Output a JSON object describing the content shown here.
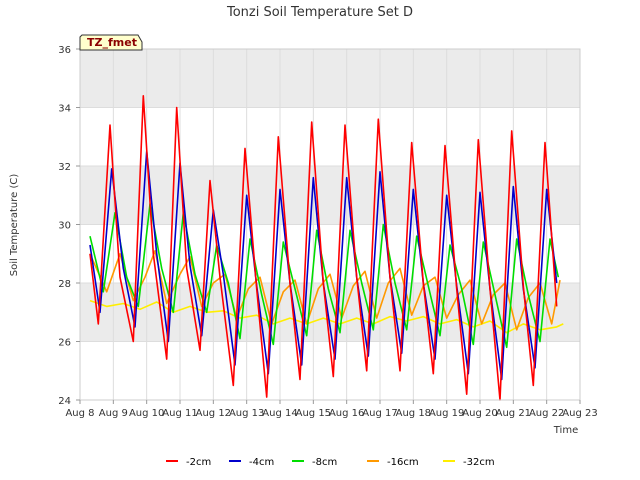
{
  "chart_data": {
    "type": "line",
    "title": "Tonzi Soil Temperature Set D",
    "xlabel": "Time",
    "ylabel": "Soil Temperature (C)",
    "tag": "TZ_fmet",
    "xlim": [
      8,
      23
    ],
    "ylim": [
      24,
      36
    ],
    "x_ticks": [
      {
        "value": 8,
        "label": "Aug 8"
      },
      {
        "value": 9,
        "label": "Aug 9"
      },
      {
        "value": 10,
        "label": "Aug 10"
      },
      {
        "value": 11,
        "label": "Aug 11"
      },
      {
        "value": 12,
        "label": "Aug 12"
      },
      {
        "value": 13,
        "label": "Aug 13"
      },
      {
        "value": 14,
        "label": "Aug 14"
      },
      {
        "value": 15,
        "label": "Aug 15"
      },
      {
        "value": 16,
        "label": "Aug 16"
      },
      {
        "value": 17,
        "label": "Aug 17"
      },
      {
        "value": 18,
        "label": "Aug 18"
      },
      {
        "value": 19,
        "label": "Aug 19"
      },
      {
        "value": 20,
        "label": "Aug 20"
      },
      {
        "value": 21,
        "label": "Aug 21"
      },
      {
        "value": 22,
        "label": "Aug 22"
      },
      {
        "value": 23,
        "label": "Aug 23"
      }
    ],
    "y_ticks": [
      {
        "value": 24,
        "label": "24"
      },
      {
        "value": 26,
        "label": "26"
      },
      {
        "value": 28,
        "label": "28"
      },
      {
        "value": 30,
        "label": "30"
      },
      {
        "value": 32,
        "label": "32"
      },
      {
        "value": 34,
        "label": "34"
      },
      {
        "value": 36,
        "label": "36"
      }
    ],
    "grid": true,
    "legend_position": "bottom",
    "series": [
      {
        "name": "-2cm",
        "color": "#ff0000",
        "x": [
          8.3,
          8.55,
          8.9,
          9.2,
          9.6,
          9.9,
          10.2,
          10.6,
          10.9,
          11.2,
          11.6,
          11.9,
          12.2,
          12.6,
          12.95,
          13.3,
          13.6,
          13.95,
          14.3,
          14.6,
          14.95,
          15.3,
          15.6,
          15.95,
          16.3,
          16.6,
          16.95,
          17.3,
          17.6,
          17.95,
          18.3,
          18.6,
          18.95,
          19.3,
          19.6,
          19.95,
          20.3,
          20.6,
          20.95,
          21.3,
          21.6,
          21.95,
          22.3
        ],
        "y": [
          29.0,
          26.6,
          33.4,
          28.2,
          26.0,
          34.4,
          29.0,
          25.4,
          34.0,
          28.5,
          25.7,
          31.5,
          28.2,
          24.5,
          32.6,
          27.8,
          24.1,
          33.0,
          28.0,
          24.7,
          33.5,
          28.0,
          24.8,
          33.4,
          28.2,
          25.0,
          33.6,
          28.2,
          25.0,
          32.8,
          28.0,
          24.9,
          32.7,
          27.8,
          24.2,
          32.9,
          27.8,
          24.0,
          33.2,
          27.9,
          24.5,
          32.8,
          27.2
        ]
      },
      {
        "name": "-4cm",
        "color": "#0000cc",
        "x": [
          8.3,
          8.6,
          8.95,
          9.3,
          9.65,
          10.0,
          10.3,
          10.65,
          11.0,
          11.3,
          11.65,
          12.0,
          12.3,
          12.65,
          13.0,
          13.3,
          13.65,
          14.0,
          14.3,
          14.65,
          15.0,
          15.3,
          15.65,
          16.0,
          16.3,
          16.65,
          17.0,
          17.3,
          17.65,
          18.0,
          18.3,
          18.65,
          19.0,
          19.3,
          19.65,
          20.0,
          20.3,
          20.65,
          21.0,
          21.3,
          21.65,
          22.0,
          22.3
        ],
        "y": [
          29.3,
          27.0,
          31.9,
          28.5,
          26.5,
          32.5,
          29.0,
          26.0,
          32.1,
          28.6,
          26.2,
          30.5,
          28.3,
          25.2,
          31.0,
          27.9,
          24.9,
          31.2,
          28.0,
          25.2,
          31.6,
          28.0,
          25.4,
          31.6,
          28.2,
          25.5,
          31.8,
          28.2,
          25.6,
          31.2,
          28.0,
          25.4,
          31.0,
          27.9,
          24.9,
          31.1,
          27.8,
          24.7,
          31.3,
          27.8,
          25.1,
          31.2,
          28.0
        ]
      },
      {
        "name": "-8cm",
        "color": "#00dd00",
        "x": [
          8.3,
          8.7,
          9.05,
          9.4,
          9.75,
          10.1,
          10.45,
          10.8,
          11.1,
          11.45,
          11.8,
          12.1,
          12.45,
          12.8,
          13.1,
          13.45,
          13.8,
          14.1,
          14.45,
          14.8,
          15.1,
          15.45,
          15.8,
          16.1,
          16.45,
          16.8,
          17.1,
          17.45,
          17.8,
          18.1,
          18.45,
          18.8,
          19.1,
          19.45,
          19.8,
          20.1,
          20.45,
          20.8,
          21.1,
          21.45,
          21.8,
          22.1,
          22.35
        ],
        "y": [
          29.6,
          27.7,
          30.4,
          28.2,
          27.2,
          30.7,
          28.5,
          27.0,
          30.4,
          28.3,
          27.0,
          29.3,
          28.0,
          26.1,
          29.5,
          27.6,
          25.9,
          29.4,
          27.8,
          26.2,
          29.8,
          27.8,
          26.3,
          29.8,
          28.0,
          26.4,
          30.0,
          28.0,
          26.4,
          29.6,
          27.9,
          26.2,
          29.3,
          27.8,
          25.9,
          29.4,
          27.6,
          25.8,
          29.5,
          27.6,
          26.0,
          29.5,
          28.2
        ]
      },
      {
        "name": "-16cm",
        "color": "#ff9900",
        "x": [
          8.3,
          8.8,
          9.2,
          9.6,
          9.95,
          10.25,
          10.6,
          11.0,
          11.3,
          11.65,
          12.0,
          12.35,
          12.7,
          13.05,
          13.4,
          13.75,
          14.1,
          14.45,
          14.8,
          15.15,
          15.5,
          15.85,
          16.2,
          16.55,
          16.9,
          17.25,
          17.6,
          17.95,
          18.3,
          18.65,
          19.0,
          19.35,
          19.7,
          20.05,
          20.4,
          20.75,
          21.1,
          21.45,
          21.8,
          22.15,
          22.4
        ],
        "y": [
          29.0,
          27.7,
          29.0,
          27.4,
          28.2,
          29.1,
          27.3,
          28.3,
          28.9,
          27.2,
          28.0,
          28.3,
          26.8,
          27.8,
          28.2,
          26.6,
          27.7,
          28.1,
          26.6,
          27.8,
          28.3,
          26.8,
          27.9,
          28.4,
          26.8,
          28.0,
          28.5,
          26.9,
          27.9,
          28.2,
          26.8,
          27.6,
          28.1,
          26.6,
          27.6,
          28.0,
          26.4,
          27.5,
          28.0,
          26.6,
          28.1
        ]
      },
      {
        "name": "-32cm",
        "color": "#ffee00",
        "x": [
          8.3,
          8.8,
          9.3,
          9.8,
          10.3,
          10.8,
          11.3,
          11.8,
          12.3,
          12.8,
          13.3,
          13.8,
          14.3,
          14.8,
          15.3,
          15.8,
          16.3,
          16.8,
          17.3,
          17.8,
          18.3,
          18.8,
          19.3,
          19.8,
          20.3,
          20.8,
          21.3,
          21.8,
          22.3,
          22.5
        ],
        "y": [
          27.4,
          27.2,
          27.3,
          27.1,
          27.35,
          27.0,
          27.2,
          27.0,
          27.05,
          26.8,
          26.9,
          26.6,
          26.8,
          26.6,
          26.8,
          26.6,
          26.8,
          26.6,
          26.85,
          26.7,
          26.85,
          26.6,
          26.75,
          26.5,
          26.7,
          26.3,
          26.6,
          26.4,
          26.5,
          26.6
        ]
      }
    ]
  }
}
